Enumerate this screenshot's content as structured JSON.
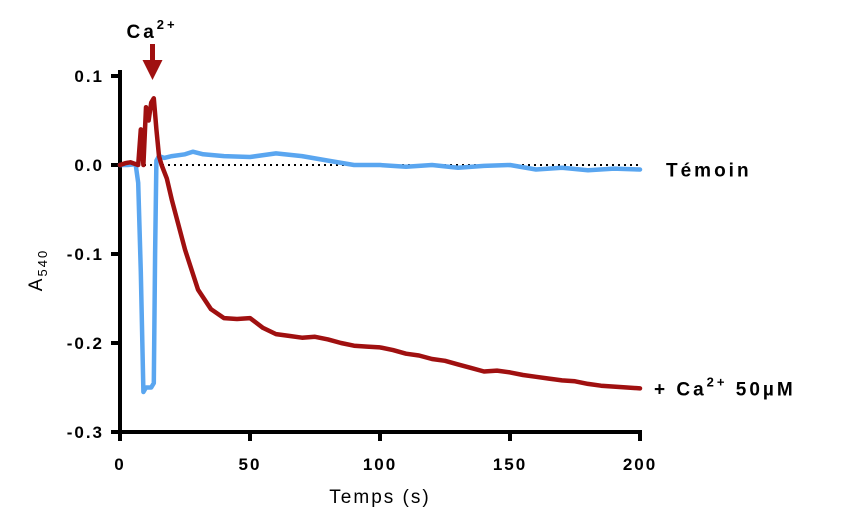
{
  "chart_data": {
    "type": "line",
    "xlabel": "Temps (s)",
    "ylabel_main": "A",
    "ylabel_sub": "540",
    "xlim": [
      0,
      200
    ],
    "ylim": [
      -0.3,
      0.1
    ],
    "xticks": [
      0,
      50,
      100,
      150,
      200
    ],
    "xtick_labels": [
      "0",
      "50",
      "100",
      "150",
      "200"
    ],
    "yticks": [
      0.1,
      0.0,
      -0.1,
      -0.2,
      -0.3
    ],
    "ytick_labels": [
      "0.1",
      "0.0",
      "-0.1",
      "-0.2",
      "-0.3"
    ],
    "reference_line": {
      "y": 0.0,
      "style": "dotted"
    },
    "grid": false,
    "arrow_annotation": {
      "base": "Ca",
      "sup": "2+",
      "x": 12.5,
      "color": "#a01010"
    },
    "series": [
      {
        "name_main": "Témoin",
        "name_sup": "",
        "name_tail": "",
        "color": "#5aa6f0",
        "x": [
          0,
          3,
          6,
          7,
          8,
          9,
          10,
          11,
          12,
          13,
          13.5,
          14,
          15,
          17,
          20,
          25,
          28,
          32,
          40,
          50,
          60,
          70,
          80,
          90,
          100,
          110,
          120,
          130,
          140,
          150,
          160,
          170,
          180,
          190,
          200
        ],
        "y": [
          0.0,
          0.0,
          0.001,
          -0.02,
          -0.12,
          -0.255,
          -0.25,
          -0.25,
          -0.25,
          -0.245,
          -0.1,
          0.005,
          0.01,
          0.008,
          0.01,
          0.012,
          0.015,
          0.012,
          0.01,
          0.009,
          0.013,
          0.01,
          0.005,
          0.0,
          0.0,
          -0.002,
          0.0,
          -0.003,
          -0.001,
          0.0,
          -0.005,
          -0.003,
          -0.006,
          -0.004,
          -0.005
        ]
      },
      {
        "name_main": "+ Ca",
        "name_sup": "2+",
        "name_tail": " 50µM",
        "color": "#a01010",
        "x": [
          0,
          2,
          4,
          6,
          7,
          8,
          9,
          10,
          11,
          12,
          13,
          14,
          15,
          16,
          18,
          20,
          25,
          30,
          35,
          40,
          45,
          50,
          55,
          60,
          65,
          70,
          75,
          80,
          85,
          90,
          95,
          100,
          105,
          110,
          115,
          120,
          125,
          130,
          135,
          140,
          145,
          150,
          155,
          160,
          165,
          170,
          175,
          180,
          185,
          190,
          195,
          200
        ],
        "y": [
          0.0,
          0.002,
          0.003,
          0.001,
          0.0,
          0.04,
          0.0,
          0.065,
          0.05,
          0.07,
          0.075,
          0.04,
          0.01,
          0.0,
          -0.015,
          -0.04,
          -0.095,
          -0.14,
          -0.162,
          -0.172,
          -0.173,
          -0.172,
          -0.183,
          -0.19,
          -0.192,
          -0.194,
          -0.193,
          -0.196,
          -0.2,
          -0.203,
          -0.204,
          -0.205,
          -0.208,
          -0.212,
          -0.214,
          -0.218,
          -0.22,
          -0.224,
          -0.228,
          -0.232,
          -0.231,
          -0.233,
          -0.236,
          -0.238,
          -0.24,
          -0.242,
          -0.243,
          -0.246,
          -0.248,
          -0.249,
          -0.25,
          -0.251
        ]
      }
    ]
  }
}
